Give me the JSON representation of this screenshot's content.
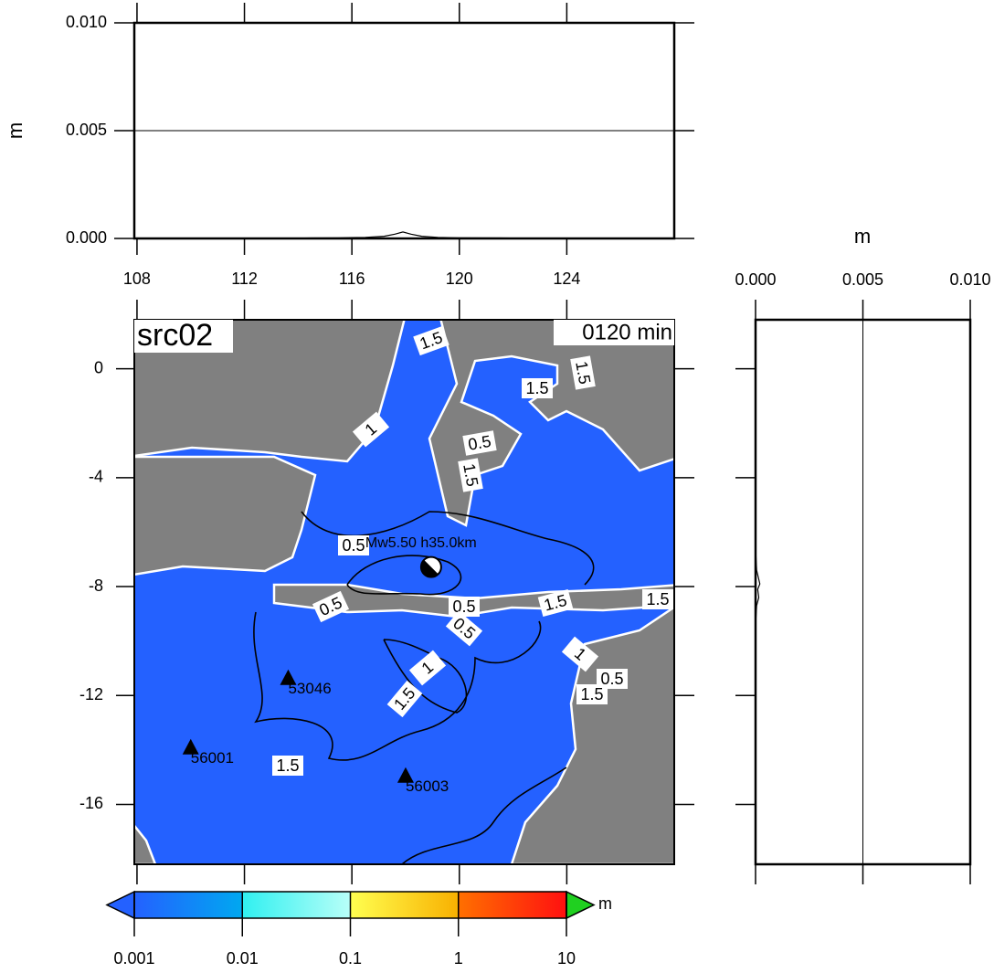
{
  "profile_top": {
    "type": "line",
    "ylabel": "m",
    "xlim": [
      107.9,
      128
    ],
    "xticks": [
      108,
      112,
      116,
      120,
      124
    ],
    "ylim": [
      0,
      0.01
    ],
    "yticks": [
      {
        "value": 0,
        "label": "0.000"
      },
      0.005,
      {
        "value": 0.01,
        "label": "0.010"
      }
    ],
    "grid": true,
    "color": "#000000",
    "x": [
      113.5,
      114.5,
      115.5,
      116.5,
      117.2,
      117.6,
      117.9,
      118.2,
      118.6,
      119.2,
      120.0,
      121.5,
      123.0
    ],
    "values": [
      0,
      2e-05,
      3e-05,
      5e-05,
      0.0001,
      0.0002,
      0.0003,
      0.0002,
      0.0001,
      5e-05,
      3e-05,
      2e-05,
      0
    ]
  },
  "profile_right": {
    "type": "line",
    "xlabel": "m",
    "xlim": [
      0,
      0.01
    ],
    "xticks": [
      {
        "value": 0,
        "label": "0.000"
      },
      0.005,
      {
        "value": 0.01,
        "label": "0.010"
      }
    ],
    "ylim": [
      -18.2,
      1.8
    ],
    "grid": true,
    "color": "#000000",
    "y": [
      -6.6,
      -7.4,
      -7.9,
      -8.1,
      -8.4,
      -8.7,
      -9.4
    ],
    "values": [
      0,
      5e-05,
      0.0002,
      0.0001,
      0.00015,
      5e-05,
      0
    ]
  },
  "map": {
    "type": "map",
    "title": "src02",
    "time_label": "0120 min",
    "xlim": [
      107.9,
      128
    ],
    "ylim": [
      -18.2,
      1.8
    ],
    "yticks": [
      0,
      -4,
      -8,
      -12,
      -16
    ],
    "source": {
      "label": "Mw5.50 h35.0km",
      "lon": 118.95,
      "lat": -7.28
    },
    "stations": [
      {
        "name": "53046",
        "lon": 113.63,
        "lat": -11.38
      },
      {
        "name": "56001",
        "lon": 110.0,
        "lat": -13.93
      },
      {
        "name": "56003",
        "lon": 118.0,
        "lat": -14.97
      }
    ],
    "contour_labels": [
      "1.5",
      "0.5",
      "1.5",
      "1",
      "0.5",
      "1.5",
      "1.5",
      "0.5",
      "0.5",
      "0.5",
      "1.5",
      "1.5",
      "1",
      "0.5",
      "1.5",
      "1",
      "1.5",
      "1.5"
    ]
  },
  "colorbar": {
    "type": "colorbar",
    "scale": "log",
    "unit": "m",
    "ticks": [
      0.001,
      0.01,
      0.1,
      1,
      10
    ],
    "colors": [
      "#2461ff",
      "#00a8f0",
      "#30f0f0",
      "#b8fff8",
      "#ffff50",
      "#f8b000",
      "#ff7000",
      "#ff1010"
    ],
    "under_color": "#2461ff",
    "over_color": "#20d020"
  }
}
